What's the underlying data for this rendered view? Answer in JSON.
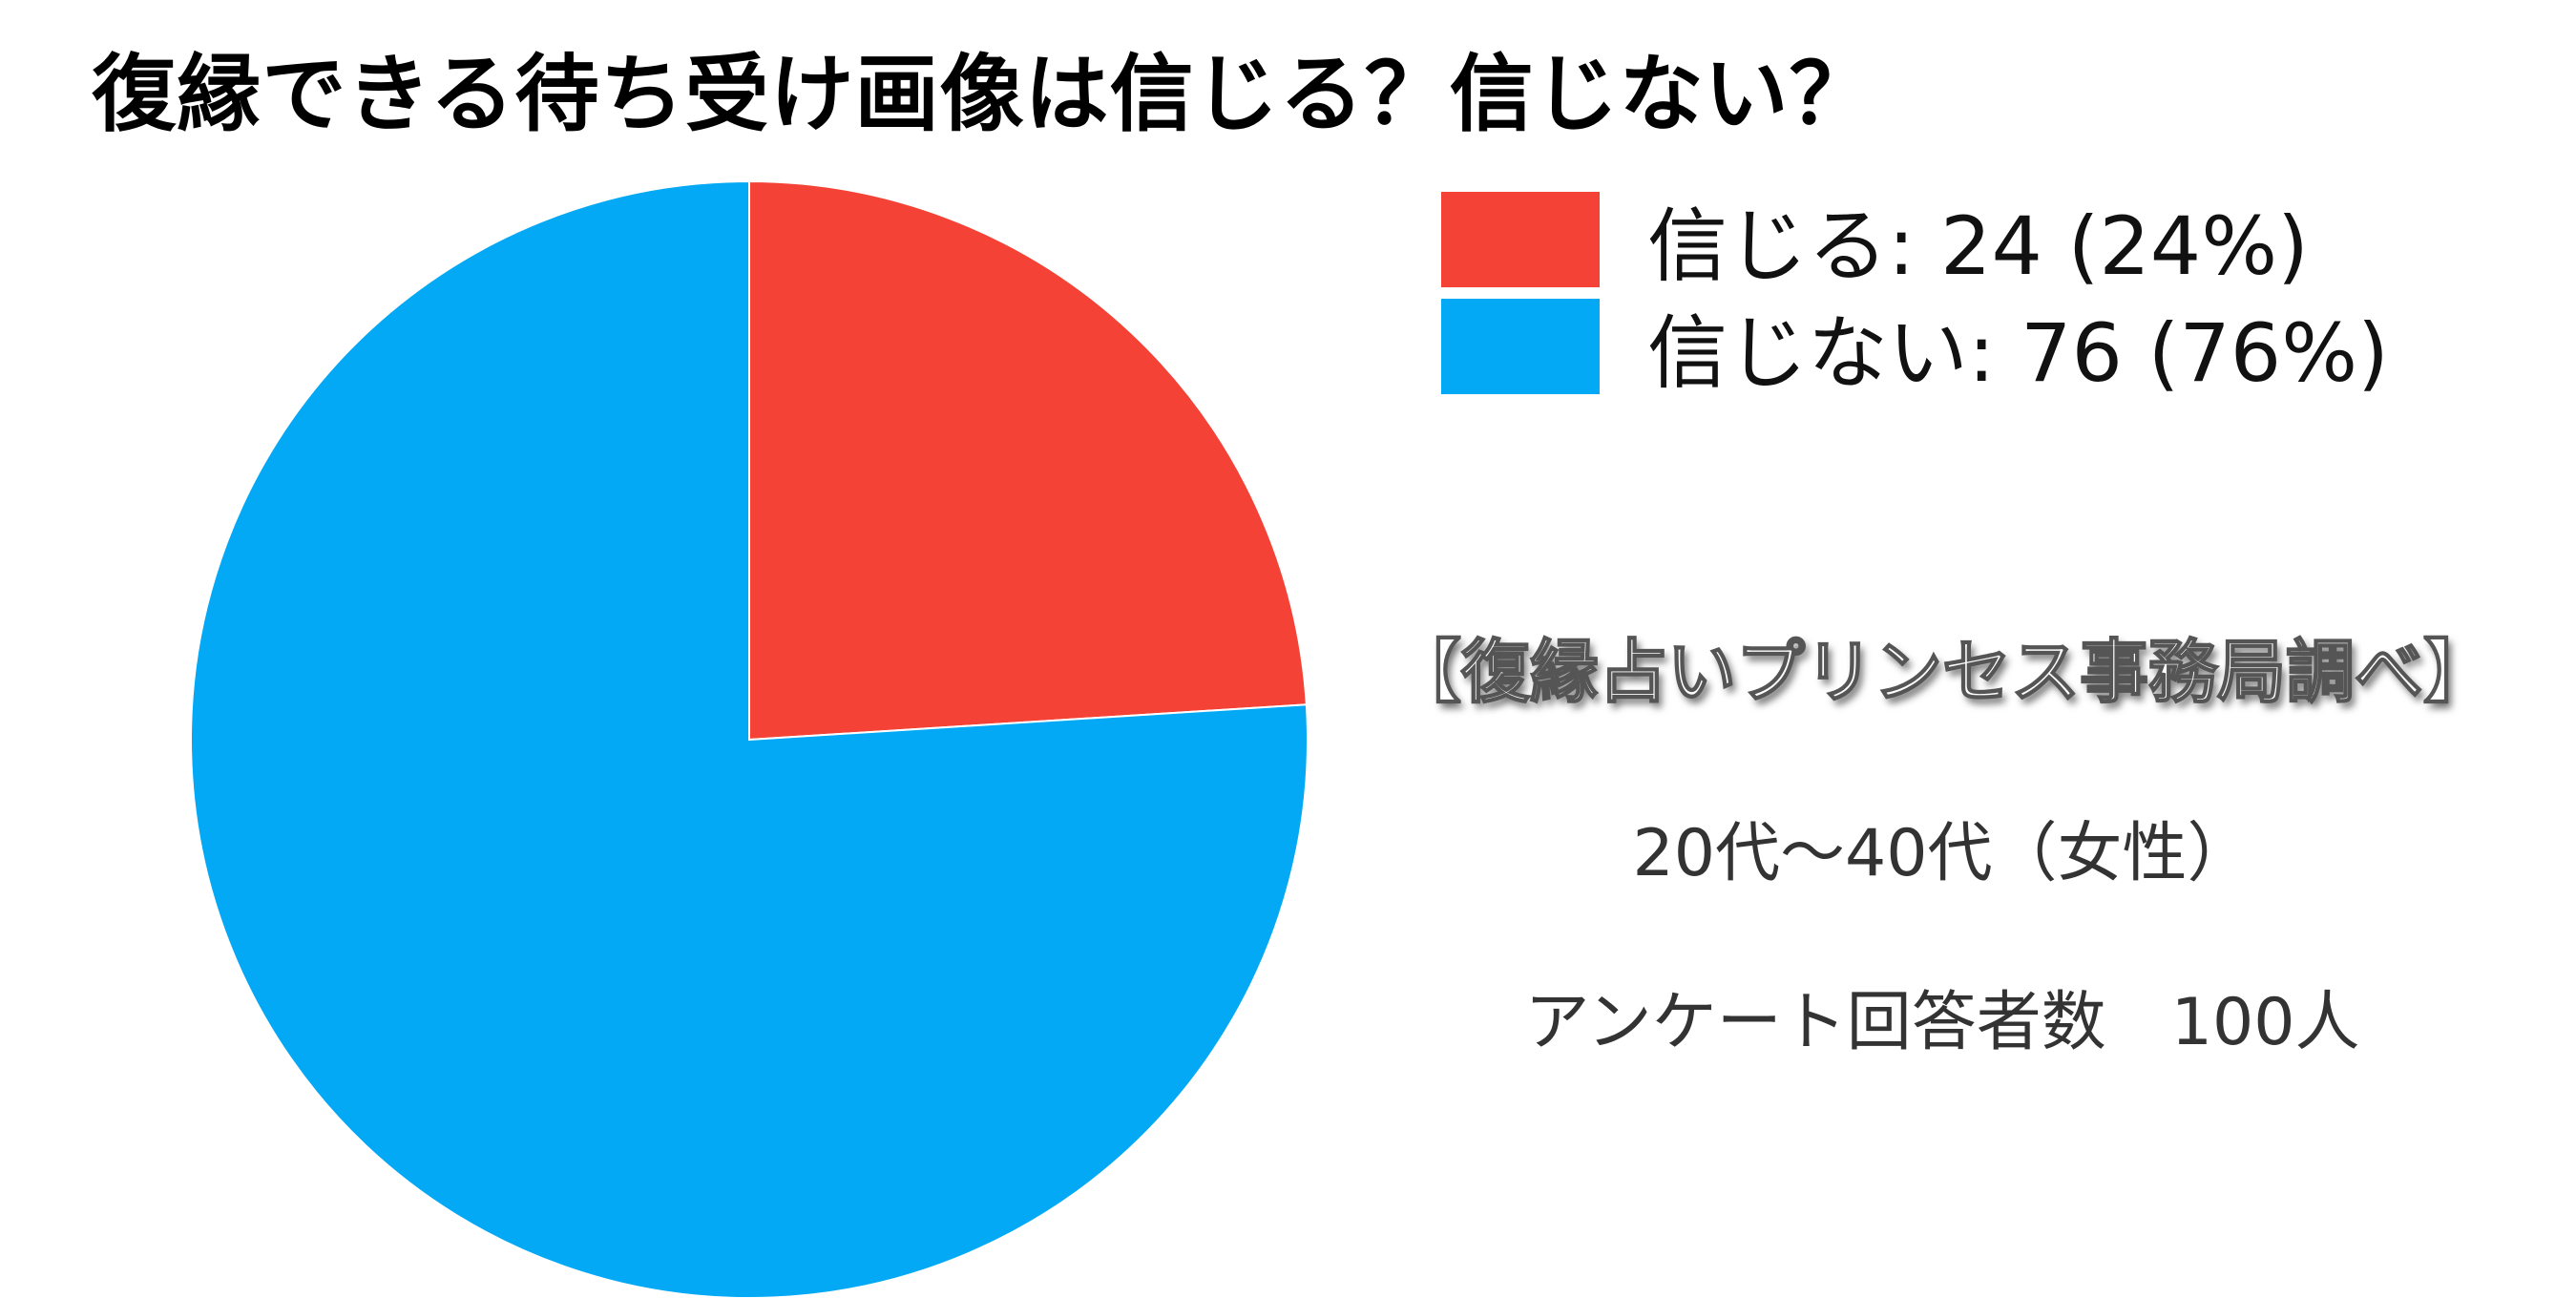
{
  "chart_data": {
    "type": "pie",
    "title": "復縁できる待ち受け画像は信じる？信じない？",
    "series": [
      {
        "name": "信じる",
        "value": 24,
        "percent": 24,
        "color": "#f44336",
        "label": "信じる: 24 (24%)"
      },
      {
        "name": "信じない",
        "value": 76,
        "percent": 76,
        "color": "#03a9f4",
        "label": "信じない: 76 (76%)"
      }
    ],
    "legend_position": "top-right",
    "start_angle": "top",
    "direction": "clockwise"
  },
  "notes": {
    "source": "【復縁占いプリンセス事務局調べ】",
    "demographic": "20代～40代（女性）",
    "respondents": "アンケート回答者数　100人"
  }
}
